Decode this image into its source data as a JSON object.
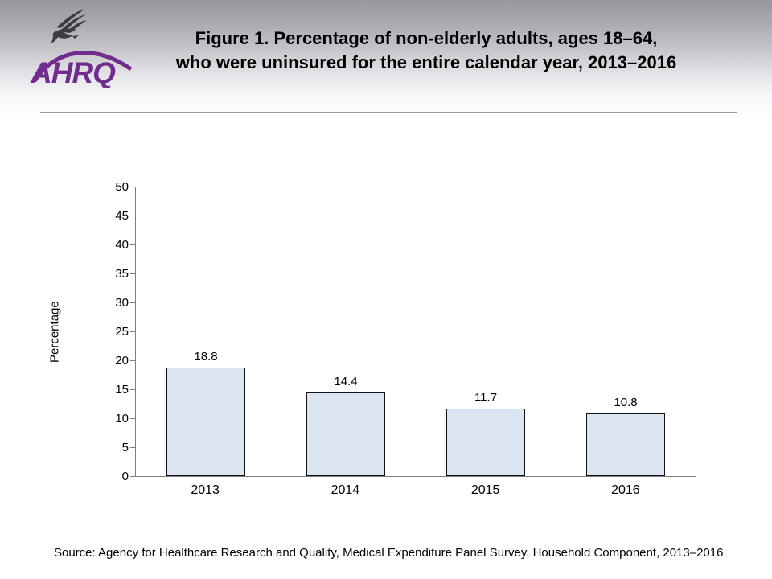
{
  "slide": {
    "title_line1": "Figure 1. Percentage of non-elderly adults, ages 18–64,",
    "title_line2": "who were uninsured for the entire calendar year, 2013–2016",
    "source": "Source: Agency for Healthcare Research and Quality, Medical Expenditure Panel Survey, Household Component, 2013–2016.",
    "logo": {
      "text": "AHRQ",
      "eagle_icon": "hhs-eagle-icon",
      "purple": "#702d8e",
      "eagle_color": "#3c3c42"
    }
  },
  "chart_data": {
    "type": "bar",
    "title": "",
    "categories": [
      "2013",
      "2014",
      "2015",
      "2016"
    ],
    "values": [
      18.8,
      14.4,
      11.7,
      10.8
    ],
    "value_labels": [
      "18.8",
      "14.4",
      "11.7",
      "10.8"
    ],
    "xlabel": "",
    "ylabel": "Percentage",
    "ylim": [
      0,
      50
    ],
    "ytick_step": 5,
    "grid": false,
    "legend": false,
    "bar_fill": "#dbe5f1",
    "bar_border": "#141414",
    "axis_color": "#7f7f7f"
  }
}
